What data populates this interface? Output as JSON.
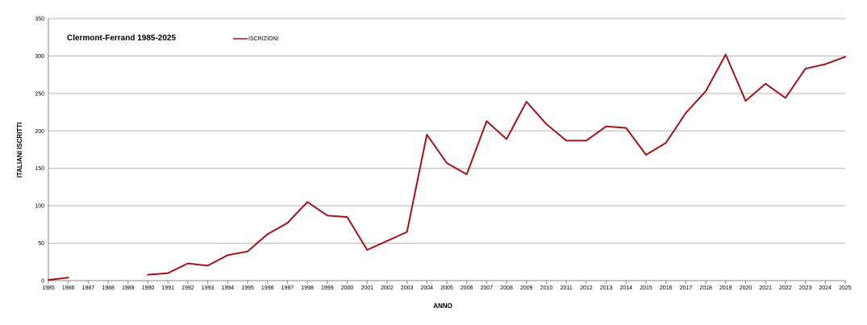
{
  "chart_data": {
    "type": "line",
    "title": "Clermont-Ferrand 1985-2025",
    "xlabel": "ANNO",
    "ylabel": "ITALIANI ISCRITTI",
    "ylim": [
      0,
      350
    ],
    "yticks": [
      0,
      50,
      100,
      150,
      200,
      250,
      300,
      350
    ],
    "grid": true,
    "legend_position": "top-center",
    "colors": {
      "series": "#a3131b",
      "grid": "#b4b4b4",
      "axis": "#888888"
    },
    "categories": [
      "1985",
      "1986",
      "1987",
      "1988",
      "1989",
      "1990",
      "1991",
      "1992",
      "1993",
      "1994",
      "1995",
      "1996",
      "1997",
      "1998",
      "1999",
      "2000",
      "2001",
      "2002",
      "2003",
      "2004",
      "2005",
      "2006",
      "2007",
      "2008",
      "2009",
      "2010",
      "2011",
      "2012",
      "2013",
      "2014",
      "2015",
      "2016",
      "2017",
      "2018",
      "2019",
      "2020",
      "2021",
      "2022",
      "2023",
      "2024",
      "2025"
    ],
    "series": [
      {
        "name": "ISCRIZIONI",
        "values": [
          1,
          4,
          null,
          null,
          null,
          8,
          10,
          23,
          20,
          34,
          39,
          62,
          77,
          105,
          87,
          85,
          41,
          53,
          65,
          195,
          157,
          142,
          213,
          189,
          239,
          209,
          187,
          187,
          206,
          204,
          168,
          184,
          224,
          253,
          302,
          240,
          263,
          244,
          283,
          289,
          299
        ]
      }
    ]
  }
}
